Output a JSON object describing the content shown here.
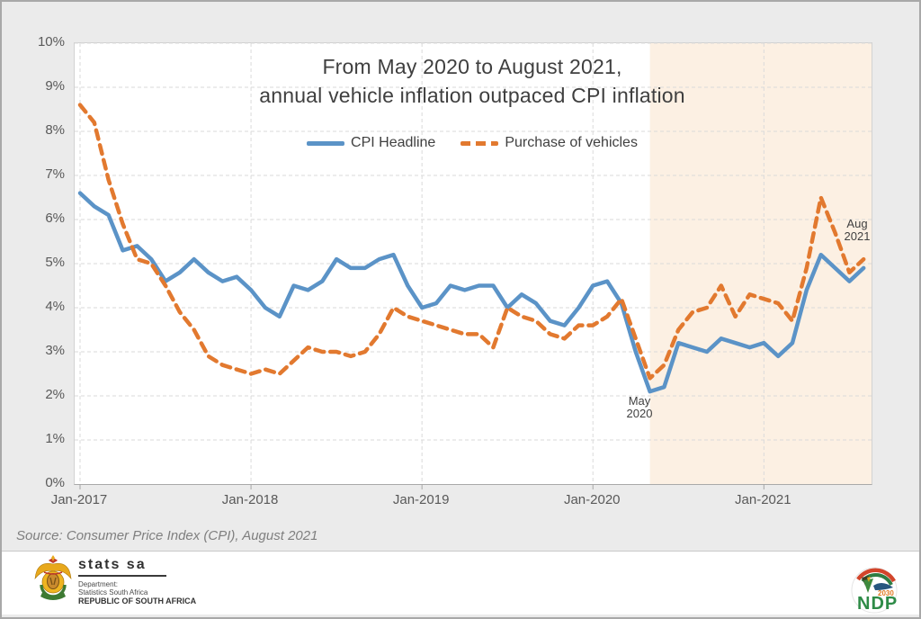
{
  "title": {
    "line1": "From May 2020 to August 2021,",
    "line2": "annual vehicle inflation outpaced CPI inflation"
  },
  "legend": [
    {
      "label": "CPI Headline",
      "color": "#5b93c7",
      "style": "solid"
    },
    {
      "label": "Purchase of vehicles",
      "color": "#e2792f",
      "style": "dashed"
    }
  ],
  "y_axis": {
    "ticks": [
      "0%",
      "1%",
      "2%",
      "3%",
      "4%",
      "5%",
      "6%",
      "7%",
      "8%",
      "9%",
      "10%"
    ]
  },
  "x_axis": {
    "ticks": [
      "Jan-2017",
      "Jan-2018",
      "Jan-2019",
      "Jan-2020",
      "Jan-2021"
    ]
  },
  "annotations": {
    "trough": {
      "line1": "May",
      "line2": "2020"
    },
    "latest": {
      "line1": "Aug",
      "line2": "2021"
    }
  },
  "source": "Source: Consumer Price Index (CPI), August 2021",
  "chart_data": {
    "type": "line",
    "unit": "percent year-on-year",
    "x_start": "2017-01",
    "x_end": "2021-08",
    "x_tick_labels": [
      "Jan-2017",
      "Jan-2018",
      "Jan-2019",
      "Jan-2020",
      "Jan-2021"
    ],
    "ylim": [
      0,
      10
    ],
    "y_tick_step": 1,
    "grid": true,
    "legend_position": "top-center",
    "highlight_band": {
      "from": "2020-05",
      "to": "2021-08",
      "color": "#fcf0e3"
    },
    "series": [
      {
        "name": "CPI Headline",
        "values": [
          6.6,
          6.3,
          6.1,
          5.3,
          5.4,
          5.1,
          4.6,
          4.8,
          5.1,
          4.8,
          4.6,
          4.7,
          4.4,
          4.0,
          3.8,
          4.5,
          4.4,
          4.6,
          5.1,
          4.9,
          4.9,
          5.1,
          5.2,
          4.5,
          4.0,
          4.1,
          4.5,
          4.4,
          4.5,
          4.5,
          4.0,
          4.3,
          4.1,
          3.7,
          3.6,
          4.0,
          4.5,
          4.6,
          4.1,
          3.0,
          2.1,
          2.2,
          3.2,
          3.1,
          3.0,
          3.3,
          3.2,
          3.1,
          3.2,
          2.9,
          3.2,
          4.4,
          5.2,
          4.9,
          4.6,
          4.9
        ]
      },
      {
        "name": "Purchase of vehicles",
        "values": [
          8.6,
          8.2,
          6.9,
          5.9,
          5.1,
          5.0,
          4.5,
          3.9,
          3.5,
          2.9,
          2.7,
          2.6,
          2.5,
          2.6,
          2.5,
          2.8,
          3.1,
          3.0,
          3.0,
          2.9,
          3.0,
          3.4,
          4.0,
          3.8,
          3.7,
          3.6,
          3.5,
          3.4,
          3.4,
          3.1,
          4.0,
          3.8,
          3.7,
          3.4,
          3.3,
          3.6,
          3.6,
          3.8,
          4.2,
          3.3,
          2.4,
          2.7,
          3.5,
          3.9,
          4.0,
          4.5,
          3.8,
          4.3,
          4.2,
          4.1,
          3.7,
          4.9,
          6.5,
          5.7,
          4.8,
          5.1
        ]
      }
    ],
    "annotations": [
      {
        "label": "May 2020",
        "x": "2020-05",
        "y": 2.1
      },
      {
        "label": "Aug 2021",
        "x": "2021-08",
        "y": 4.9
      }
    ]
  },
  "footer": {
    "statssa": {
      "name": "stats sa",
      "dept_line1": "Department:",
      "dept_line2": "Statistics South Africa",
      "dept_line3": "REPUBLIC OF SOUTH AFRICA"
    },
    "ndp": {
      "label": "NDP",
      "year": "2030"
    }
  },
  "colors": {
    "page_background": "#ebebeb",
    "plot_background": "#ffffff",
    "band": "#fcf0e3",
    "gridline": "#dadada",
    "cpi_line": "#5b93c7",
    "vehicles_line": "#e2792f",
    "title_text": "#3f3f3f",
    "axis_text": "#595959"
  }
}
